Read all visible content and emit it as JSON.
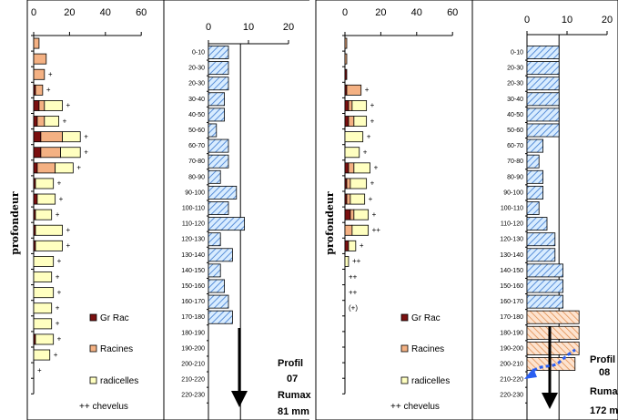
{
  "chart_data": [
    {
      "type": "bar",
      "title": "",
      "ylabel": "profondeur",
      "x_ticks": [
        "0",
        "20",
        "40",
        "60"
      ],
      "xlim": [
        0,
        60
      ],
      "series": [
        {
          "name": "Gr Rac",
          "color": "#7b1010",
          "values": [
            0,
            0,
            0,
            1,
            3,
            2,
            4,
            4,
            2,
            1,
            2,
            1,
            1,
            1,
            0,
            0,
            0,
            0,
            0,
            1,
            0,
            0,
            0
          ]
        },
        {
          "name": "Racines",
          "color": "#f4b183",
          "values": [
            3,
            7,
            6,
            4,
            3,
            4,
            12,
            11,
            10,
            0,
            0,
            0,
            0,
            0,
            0,
            0,
            0,
            0,
            0,
            0,
            0,
            0,
            0
          ]
        },
        {
          "name": "radicelles",
          "color": "#ffffc0",
          "values": [
            0,
            0,
            0,
            0,
            10,
            8,
            10,
            11,
            10,
            10,
            10,
            9,
            15,
            15,
            11,
            10,
            11,
            10,
            10,
            10,
            9,
            0,
            0
          ]
        }
      ],
      "annotations": [
        "",
        "",
        "+",
        "+",
        "+",
        "+",
        "+",
        "+",
        "+",
        "+",
        "+",
        "+",
        "+",
        "+",
        "+",
        "+",
        "+",
        "+",
        "+",
        "+",
        "+",
        "+",
        ""
      ],
      "legend": [
        "Gr Rac",
        "Racines",
        "radicelles",
        "++ chevelus"
      ]
    },
    {
      "type": "bar",
      "x_ticks": [
        "0",
        "10",
        "20"
      ],
      "xlim": [
        0,
        20
      ],
      "categories": [
        "0-10",
        "20-30",
        "20-30",
        "30-40",
        "40-50",
        "50-60",
        "60-70",
        "70-80",
        "80-90",
        "90-100",
        "100-110",
        "110-120",
        "120-130",
        "130-140",
        "140-150",
        "150-160",
        "160-170",
        "170-180",
        "180-190",
        "190-200",
        "200-210",
        "210-220",
        "220-230"
      ],
      "values": [
        5,
        5,
        5,
        4,
        4,
        2,
        5,
        5,
        3,
        7,
        5,
        9,
        3,
        6,
        3,
        4,
        5,
        6,
        0,
        0,
        0,
        0,
        0
      ],
      "profile_info": [
        "Profil",
        "07",
        "Rumax",
        "81 mm"
      ]
    },
    {
      "type": "bar",
      "title": "",
      "ylabel": "profondeur",
      "x_ticks": [
        "0",
        "20",
        "40",
        "60"
      ],
      "xlim": [
        0,
        60
      ],
      "series": [
        {
          "name": "Gr Rac",
          "color": "#7b1010",
          "values": [
            0,
            0,
            1,
            1,
            2,
            2,
            0,
            0,
            2,
            1,
            1,
            3,
            0,
            2,
            0,
            0,
            0,
            0,
            0,
            0,
            0,
            0,
            0
          ]
        },
        {
          "name": "Racines",
          "color": "#f4b183",
          "values": [
            1,
            1,
            0,
            8,
            2,
            3,
            0,
            0,
            3,
            2,
            2,
            2,
            4,
            0,
            0,
            0,
            0,
            0,
            0,
            0,
            0,
            0,
            0
          ]
        },
        {
          "name": "radicelles",
          "color": "#ffffc0",
          "values": [
            0,
            0,
            0,
            0,
            8,
            7,
            10,
            8,
            9,
            9,
            8,
            8,
            9,
            4,
            2,
            0,
            0,
            0,
            0,
            0,
            0,
            0,
            0
          ]
        }
      ],
      "annotations": [
        "",
        "",
        "",
        "+",
        "+",
        "+",
        "+",
        "+",
        "+",
        "+",
        "+",
        "+",
        "++",
        "+",
        "++",
        "++",
        "++",
        "(+)",
        "",
        "",
        "",
        "",
        ""
      ],
      "legend": [
        "Gr Rac",
        "Racines",
        "radicelles",
        "++ chevelus"
      ]
    },
    {
      "type": "bar",
      "x_ticks": [
        "0",
        "10",
        "20"
      ],
      "xlim": [
        0,
        20
      ],
      "categories": [
        "0-10",
        "20-30",
        "20-30",
        "30-40",
        "40-50",
        "50-60",
        "60-70",
        "70-80",
        "80-90",
        "90-100",
        "100-110",
        "110-120",
        "120-130",
        "130-140",
        "140-150",
        "150-160",
        "160-170",
        "170-180",
        "180-190",
        "190-200",
        "200-210",
        "210-220",
        "220-230"
      ],
      "values": [
        8,
        8,
        8,
        8,
        8,
        8,
        4,
        3,
        4,
        4,
        3,
        5,
        7,
        7,
        9,
        9,
        9,
        13,
        13,
        13,
        12,
        0,
        0
      ],
      "profile_info": [
        "Profil",
        "08",
        "Rumax",
        "172 mm"
      ]
    }
  ]
}
